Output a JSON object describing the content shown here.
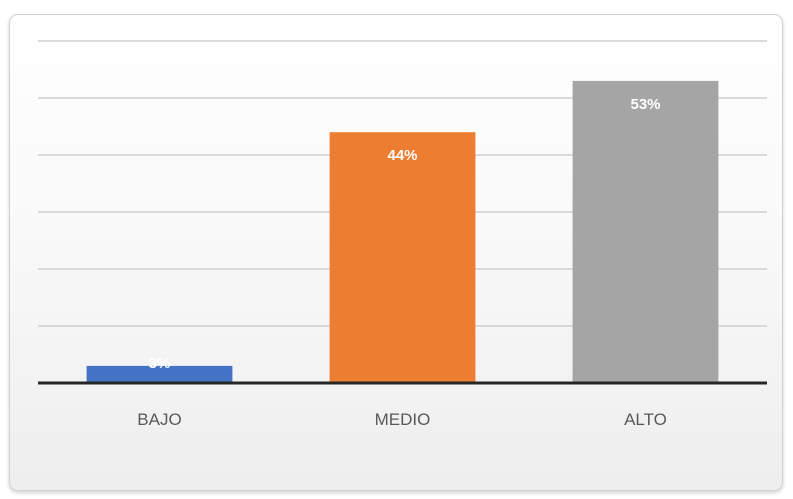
{
  "chart_data": {
    "type": "bar",
    "categories": [
      "BAJO",
      "MEDIO",
      "ALTO"
    ],
    "values": [
      3,
      44,
      53
    ],
    "data_labels": [
      "3%",
      "44%",
      "53%"
    ],
    "colors": [
      "#4472c4",
      "#ed7d31",
      "#a5a5a5"
    ],
    "ylim": [
      0,
      60
    ],
    "y_gridline_step": 10,
    "grid": true,
    "legend": "none"
  }
}
